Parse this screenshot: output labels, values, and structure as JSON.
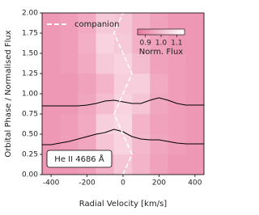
{
  "chart_data": {
    "type": "heatmap",
    "x_label": "Radial Velocity [km/s]",
    "y_label": "Orbital Phase / Normalised Flux",
    "xlim": [
      -450,
      450
    ],
    "xticks": [
      -400,
      -200,
      0,
      200,
      400
    ],
    "ylim": [
      0,
      2
    ],
    "yticks": [
      {
        "value": 0,
        "label": "0.00"
      },
      {
        "value": 0.25,
        "label": "0.25"
      },
      {
        "value": 0.5,
        "label": "0.50"
      },
      {
        "value": 0.75,
        "label": "0.75"
      },
      {
        "value": 1,
        "label": "1.00"
      },
      {
        "value": 1.25,
        "label": "1.25"
      },
      {
        "value": 1.5,
        "label": "1.50"
      },
      {
        "value": 1.75,
        "label": "1.75"
      },
      {
        "value": 2,
        "label": "2.00"
      }
    ],
    "heatmap": {
      "x_edges": [
        -450,
        -350,
        -250,
        -150,
        -50,
        50,
        150,
        250,
        350,
        450
      ],
      "y_edges": [
        0,
        0.25,
        0.5,
        0.75,
        1,
        1.25,
        1.5,
        1.75,
        2
      ],
      "values": [
        [
          0.92,
          0.92,
          0.93,
          0.97,
          1.02,
          0.98,
          0.94,
          0.92,
          0.92
        ],
        [
          0.92,
          0.93,
          0.95,
          1.02,
          1.05,
          0.99,
          0.95,
          0.93,
          0.92
        ],
        [
          0.92,
          0.93,
          0.96,
          1.04,
          1.06,
          0.98,
          0.94,
          0.93,
          0.92
        ],
        [
          0.92,
          0.92,
          0.95,
          1.0,
          1.05,
          1.02,
          0.95,
          0.93,
          0.92
        ],
        [
          0.92,
          0.92,
          0.94,
          0.98,
          1.04,
          1.04,
          0.96,
          0.93,
          0.92
        ],
        [
          0.92,
          0.93,
          0.96,
          1.03,
          1.05,
          1.0,
          0.94,
          0.93,
          0.92
        ],
        [
          0.92,
          0.93,
          0.97,
          1.05,
          1.03,
          0.97,
          0.94,
          0.92,
          0.92
        ],
        [
          0.92,
          0.93,
          0.96,
          1.03,
          1.02,
          0.97,
          0.94,
          0.92,
          0.92
        ]
      ],
      "clim": [
        0.85,
        1.15
      ],
      "colors": [
        "#e9799f",
        "#ffffff"
      ]
    },
    "colorbar": {
      "label": "Norm. Flux",
      "ticks": [
        0.9,
        {
          "value": 1,
          "label": "1.0"
        },
        1.1
      ]
    },
    "series": [
      {
        "name": "companion",
        "color": "#ffffff",
        "style": "dashed",
        "x": [
          0,
          50,
          0,
          -50,
          0,
          50,
          0,
          -50,
          0
        ],
        "y": [
          0,
          0.25,
          0.5,
          0.75,
          1,
          1.25,
          1.5,
          1.75,
          2
        ]
      }
    ],
    "profiles": [
      {
        "color": "#000000",
        "x": [
          -450,
          -400,
          -350,
          -300,
          -250,
          -200,
          -150,
          -100,
          -50,
          0,
          50,
          100,
          150,
          200,
          250,
          300,
          350,
          400,
          450
        ],
        "values": [
          0.85,
          0.85,
          0.85,
          0.85,
          0.85,
          0.86,
          0.88,
          0.91,
          0.92,
          0.9,
          0.88,
          0.88,
          0.92,
          0.95,
          0.92,
          0.88,
          0.86,
          0.86,
          0.86
        ]
      },
      {
        "color": "#000000",
        "x": [
          -450,
          -400,
          -350,
          -300,
          -250,
          -200,
          -150,
          -100,
          -50,
          0,
          50,
          100,
          150,
          200,
          250,
          300,
          350,
          400,
          450
        ],
        "values": [
          0.37,
          0.37,
          0.39,
          0.41,
          0.44,
          0.47,
          0.5,
          0.52,
          0.56,
          0.53,
          0.47,
          0.44,
          0.43,
          0.43,
          0.41,
          0.39,
          0.38,
          0.38,
          0.38
        ]
      }
    ],
    "annotation": "He II 4686 Å"
  }
}
